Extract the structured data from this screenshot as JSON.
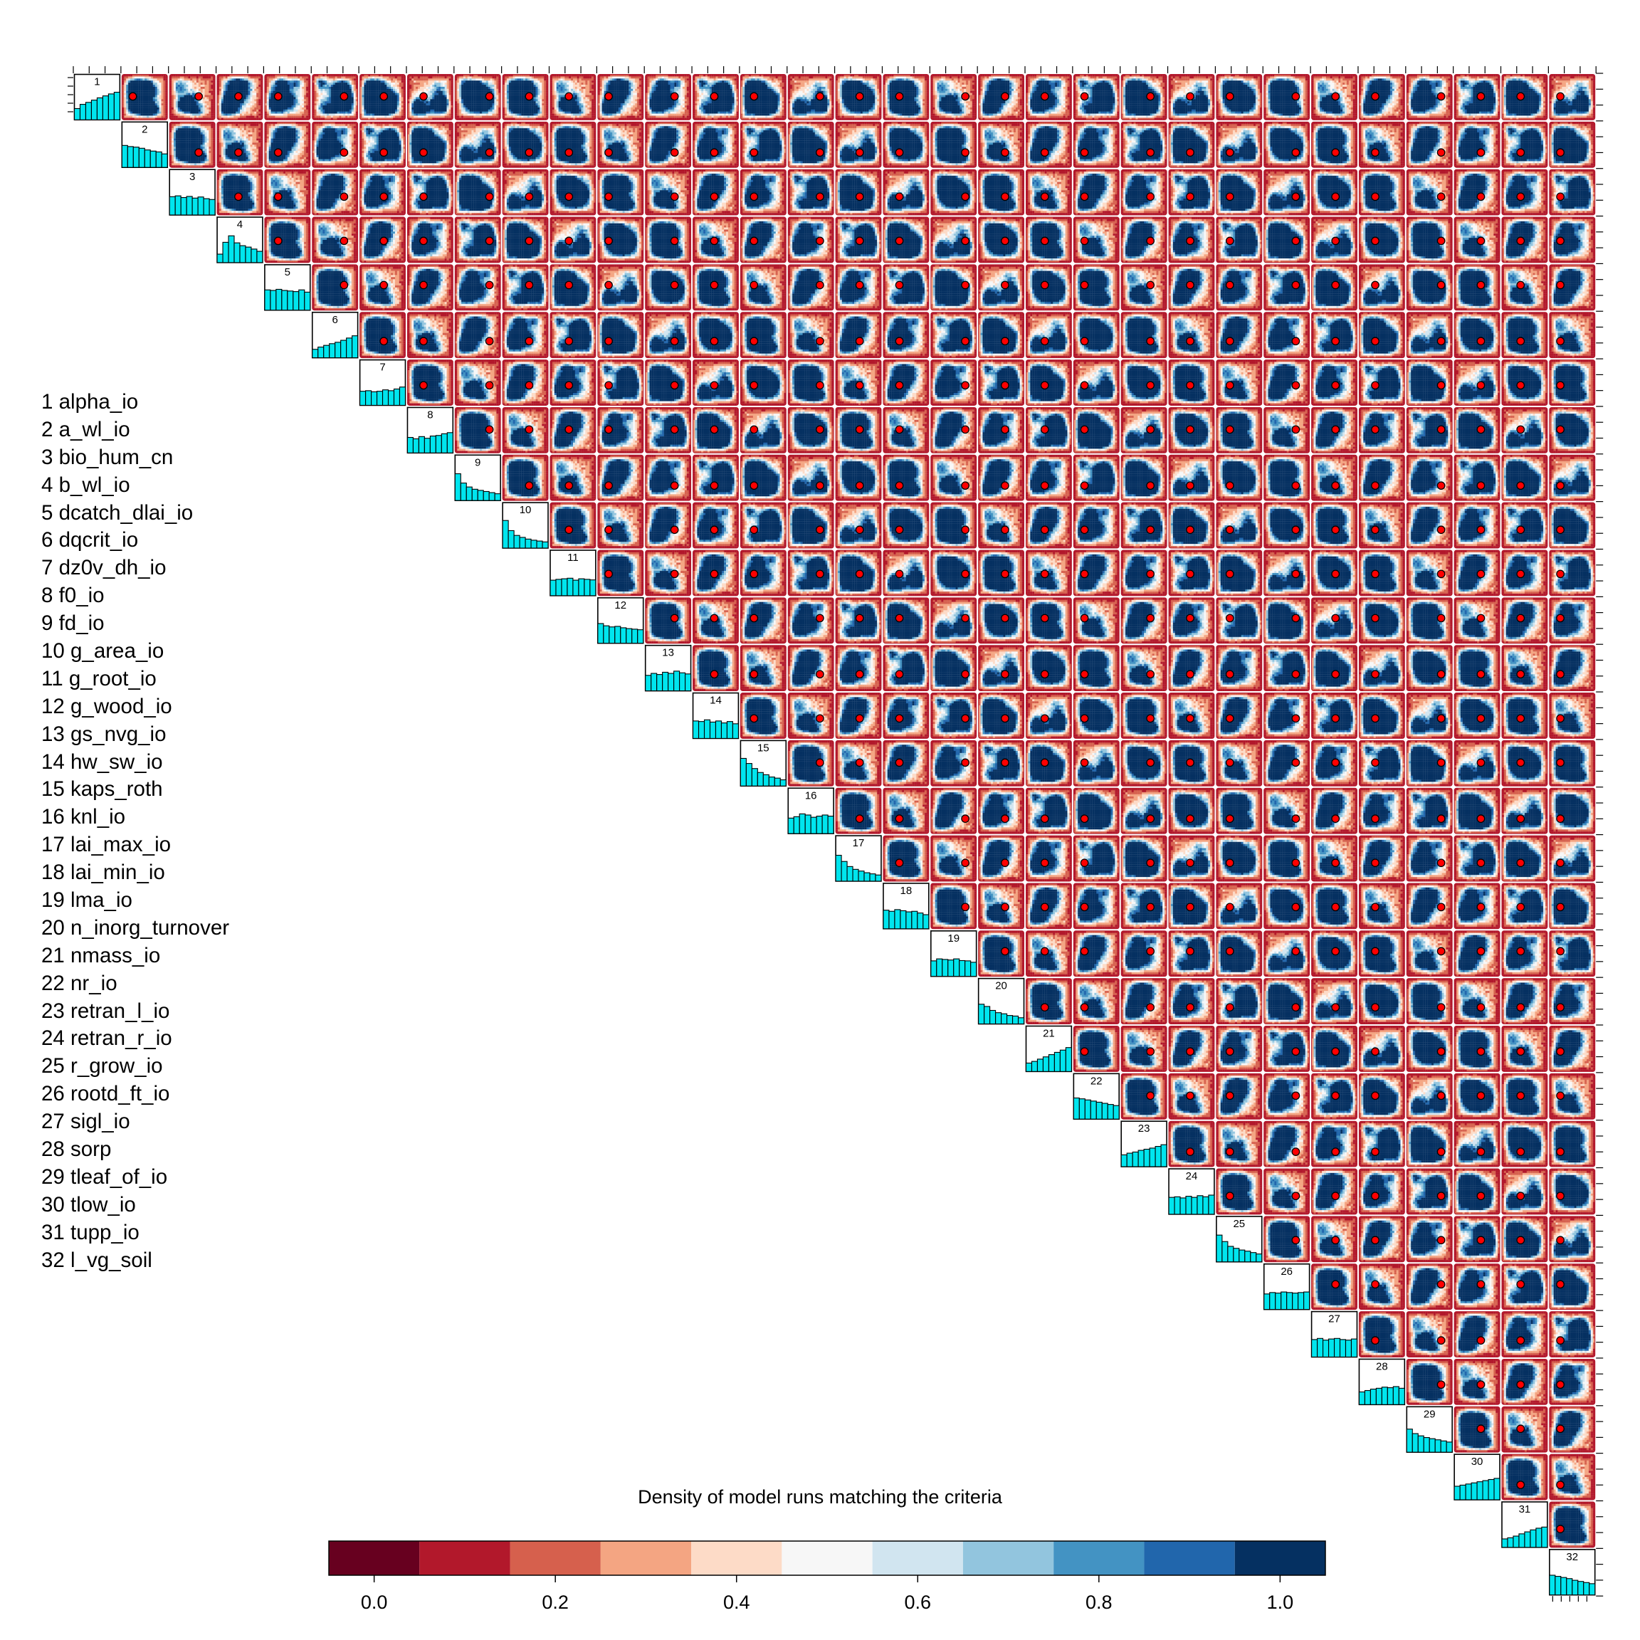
{
  "chart_data": {
    "type": "heatmap",
    "subtype": "upper-triangular pairs matrix of 2-D density maps with marginal histograms on the diagonal",
    "n_parameters": 32,
    "parameters": [
      {
        "index": "1",
        "name": "alpha_io"
      },
      {
        "index": "2",
        "name": "a_wl_io"
      },
      {
        "index": "3",
        "name": "bio_hum_cn"
      },
      {
        "index": "4",
        "name": "b_wl_io"
      },
      {
        "index": "5",
        "name": "dcatch_dlai_io"
      },
      {
        "index": "6",
        "name": "dqcrit_io"
      },
      {
        "index": "7",
        "name": "dz0v_dh_io"
      },
      {
        "index": "8",
        "name": "f0_io"
      },
      {
        "index": "9",
        "name": "fd_io"
      },
      {
        "index": "10",
        "name": "g_area_io"
      },
      {
        "index": "11",
        "name": "g_root_io"
      },
      {
        "index": "12",
        "name": "g_wood_io"
      },
      {
        "index": "13",
        "name": "gs_nvg_io"
      },
      {
        "index": "14",
        "name": "hw_sw_io"
      },
      {
        "index": "15",
        "name": "kaps_roth"
      },
      {
        "index": "16",
        "name": "knl_io"
      },
      {
        "index": "17",
        "name": "lai_max_io"
      },
      {
        "index": "18",
        "name": "lai_min_io"
      },
      {
        "index": "19",
        "name": "lma_io"
      },
      {
        "index": "20",
        "name": "n_inorg_turnover"
      },
      {
        "index": "21",
        "name": "nmass_io"
      },
      {
        "index": "22",
        "name": "nr_io"
      },
      {
        "index": "23",
        "name": "retran_l_io"
      },
      {
        "index": "24",
        "name": "retran_r_io"
      },
      {
        "index": "25",
        "name": "r_grow_io"
      },
      {
        "index": "26",
        "name": "rootd_ft_io"
      },
      {
        "index": "27",
        "name": "sigl_io"
      },
      {
        "index": "28",
        "name": "sorp"
      },
      {
        "index": "29",
        "name": "tleaf_of_io"
      },
      {
        "index": "30",
        "name": "tlow_io"
      },
      {
        "index": "31",
        "name": "tupp_io"
      },
      {
        "index": "32",
        "name": "l_vg_soil"
      }
    ],
    "histograms": [
      [
        0.4,
        0.55,
        0.62,
        0.7,
        0.78,
        0.85,
        0.92,
        0.98
      ],
      [
        0.78,
        0.74,
        0.72,
        0.68,
        0.62,
        0.58,
        0.55,
        0.48
      ],
      [
        0.65,
        0.68,
        0.62,
        0.66,
        0.6,
        0.64,
        0.58,
        0.55
      ],
      [
        0.3,
        0.72,
        0.95,
        0.7,
        0.6,
        0.55,
        0.48,
        0.4
      ],
      [
        0.72,
        0.7,
        0.74,
        0.7,
        0.68,
        0.66,
        0.72,
        0.64
      ],
      [
        0.3,
        0.38,
        0.44,
        0.5,
        0.55,
        0.62,
        0.7,
        0.78
      ],
      [
        0.5,
        0.52,
        0.48,
        0.5,
        0.55,
        0.52,
        0.58,
        0.65
      ],
      [
        0.55,
        0.5,
        0.58,
        0.52,
        0.6,
        0.62,
        0.68,
        0.72
      ],
      [
        0.95,
        0.62,
        0.48,
        0.4,
        0.36,
        0.32,
        0.28,
        0.24
      ],
      [
        0.98,
        0.62,
        0.45,
        0.38,
        0.32,
        0.28,
        0.25,
        0.22
      ],
      [
        0.55,
        0.58,
        0.6,
        0.62,
        0.55,
        0.6,
        0.58,
        0.56
      ],
      [
        0.7,
        0.62,
        0.58,
        0.6,
        0.55,
        0.52,
        0.5,
        0.48
      ],
      [
        0.55,
        0.62,
        0.58,
        0.66,
        0.62,
        0.7,
        0.64,
        0.6
      ],
      [
        0.62,
        0.6,
        0.66,
        0.58,
        0.62,
        0.55,
        0.6,
        0.52
      ],
      [
        0.98,
        0.8,
        0.62,
        0.48,
        0.4,
        0.32,
        0.28,
        0.22
      ],
      [
        0.55,
        0.6,
        0.7,
        0.66,
        0.58,
        0.62,
        0.66,
        0.62
      ],
      [
        0.92,
        0.7,
        0.52,
        0.42,
        0.36,
        0.3,
        0.26,
        0.22
      ],
      [
        0.66,
        0.62,
        0.68,
        0.64,
        0.6,
        0.62,
        0.56,
        0.5
      ],
      [
        0.55,
        0.62,
        0.6,
        0.58,
        0.62,
        0.56,
        0.55,
        0.5
      ],
      [
        0.7,
        0.62,
        0.48,
        0.4,
        0.36,
        0.3,
        0.28,
        0.22
      ],
      [
        0.3,
        0.36,
        0.44,
        0.52,
        0.6,
        0.68,
        0.76,
        0.85
      ],
      [
        0.75,
        0.72,
        0.68,
        0.64,
        0.6,
        0.56,
        0.52,
        0.48
      ],
      [
        0.42,
        0.48,
        0.52,
        0.58,
        0.62,
        0.66,
        0.72,
        0.78
      ],
      [
        0.6,
        0.62,
        0.58,
        0.64,
        0.6,
        0.66,
        0.62,
        0.68
      ],
      [
        0.95,
        0.72,
        0.55,
        0.48,
        0.42,
        0.38,
        0.33,
        0.28
      ],
      [
        0.55,
        0.6,
        0.58,
        0.62,
        0.6,
        0.58,
        0.6,
        0.62
      ],
      [
        0.62,
        0.66,
        0.6,
        0.64,
        0.66,
        0.62,
        0.6,
        0.64
      ],
      [
        0.45,
        0.5,
        0.55,
        0.58,
        0.62,
        0.6,
        0.64,
        0.58
      ],
      [
        0.82,
        0.66,
        0.58,
        0.52,
        0.48,
        0.44,
        0.4,
        0.36
      ],
      [
        0.48,
        0.52,
        0.56,
        0.6,
        0.64,
        0.68,
        0.72,
        0.76
      ],
      [
        0.3,
        0.34,
        0.4,
        0.48,
        0.55,
        0.62,
        0.68,
        0.72
      ],
      [
        0.7,
        0.66,
        0.62,
        0.58,
        0.52,
        0.48,
        0.44,
        0.4
      ]
    ],
    "default_point_marker": {
      "fill": "#ff0000",
      "stroke": "#000000",
      "meaning": "red dot marking one parameter setting in each panel"
    },
    "colorbar": {
      "title": "Density of model runs matching the criteria",
      "range": [
        -0.05,
        1.05
      ],
      "bin_edges": [
        -0.05,
        0.05,
        0.15,
        0.25,
        0.35,
        0.45,
        0.55,
        0.65,
        0.75,
        0.85,
        0.95,
        1.05
      ],
      "colors": [
        "#67001f",
        "#b2182b",
        "#d6604d",
        "#f4a582",
        "#fddbc7",
        "#f7f7f7",
        "#d1e5f0",
        "#92c5de",
        "#4393c3",
        "#2166ac",
        "#053061"
      ],
      "ticks": [
        "0.0",
        "0.2",
        "0.4",
        "0.6",
        "0.8",
        "1.0"
      ],
      "tick_values": [
        0.0,
        0.2,
        0.4,
        0.6,
        0.8,
        1.0
      ]
    },
    "histogram_fill": "#00e5ee",
    "grid": false,
    "legend_placement": "bottom-center"
  }
}
